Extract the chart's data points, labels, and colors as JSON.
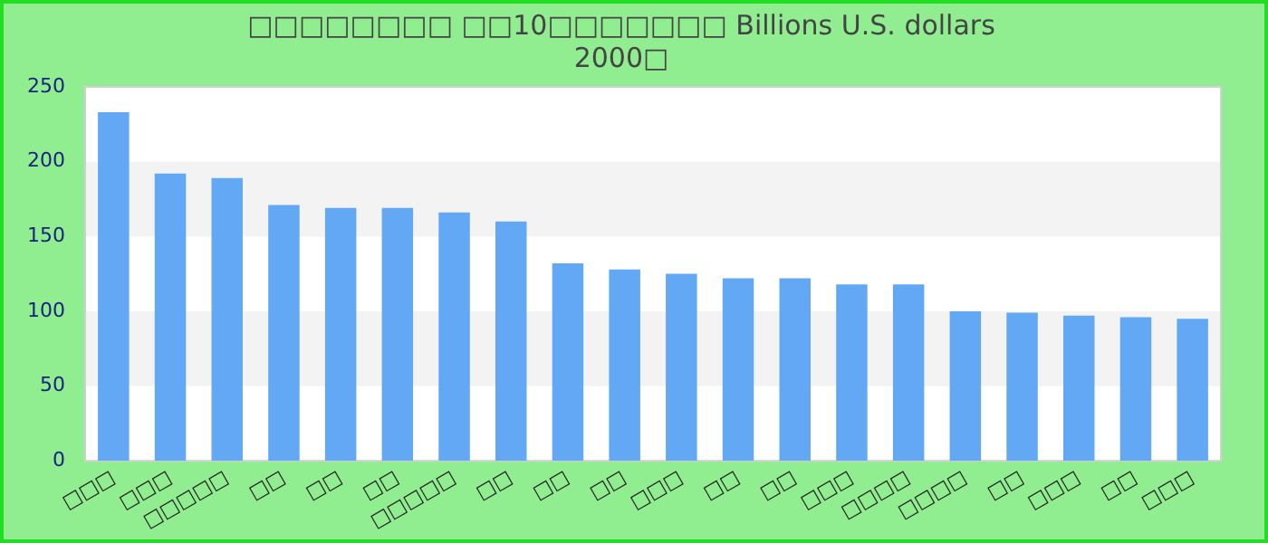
{
  "chart_data": {
    "type": "bar",
    "title": [
      "□□□□□□□□ □□10□□□□□□□ Billions U.S. dollars",
      "2000□"
    ],
    "categories": [
      "□□□",
      "□□□",
      "□□□□□",
      "□□",
      "□□",
      "□□",
      "□□□□□",
      "□□",
      "□□",
      "□□",
      "□□□",
      "□□",
      "□□",
      "□□□",
      "□□□□",
      "□□□□",
      "□□",
      "□□□",
      "□□",
      "□□□"
    ],
    "values": [
      233,
      192,
      189,
      171,
      169,
      169,
      166,
      160,
      132,
      128,
      125,
      122,
      122,
      118,
      118,
      100,
      99,
      97,
      96,
      95
    ],
    "color": "#62a8f4",
    "ylim": [
      0,
      250
    ],
    "yticks": [
      0,
      50,
      100,
      150,
      200,
      250
    ],
    "legend": false
  }
}
